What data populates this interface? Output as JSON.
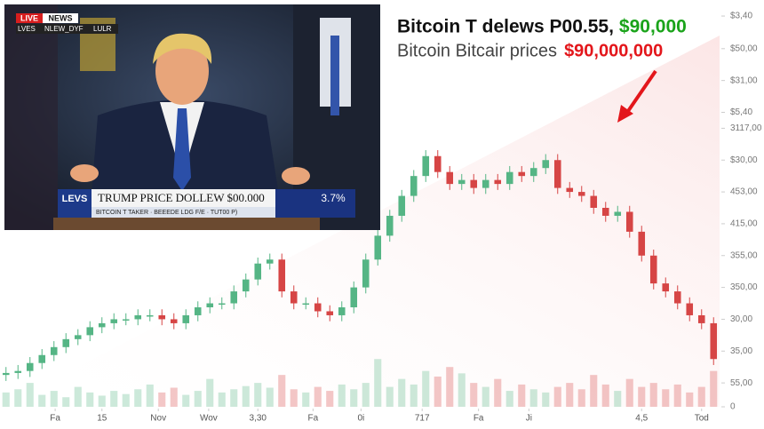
{
  "chart_data": {
    "type": "candlestick",
    "title": "Bitcoin T delews P00.55,",
    "title_highlight": "$90,000",
    "subtitle": "Bitcoin Bitcair prices",
    "subtitle_highlight": "$90,000,000",
    "colors": {
      "up": "#55b585",
      "down": "#d64545"
    },
    "xlim": [
      -0.5,
      59.5
    ],
    "xticks": [
      {
        "value": 4.1,
        "label": "Fa"
      },
      {
        "value": 8,
        "label": "15"
      },
      {
        "value": 12.7,
        "label": "Nov"
      },
      {
        "value": 16.9,
        "label": "Wov"
      },
      {
        "value": 21,
        "label": "3,30"
      },
      {
        "value": 25.6,
        "label": "Fa"
      },
      {
        "value": 29.6,
        "label": "0i"
      },
      {
        "value": 34.7,
        "label": "717"
      },
      {
        "value": 39.4,
        "label": "Fa"
      },
      {
        "value": 43.6,
        "label": "Ji"
      },
      {
        "value": 53,
        "label": "4,5"
      },
      {
        "value": 58,
        "label": "Tod"
      }
    ],
    "ylim": [
      0,
      100
    ],
    "yticks": [
      {
        "value": 98.2,
        "label": "$3,40"
      },
      {
        "value": 90,
        "label": "$50,00"
      },
      {
        "value": 82,
        "label": "$31,00"
      },
      {
        "value": 74,
        "label": "$5,40"
      },
      {
        "value": 70,
        "label": "3117,00"
      },
      {
        "value": 62,
        "label": "$30,00"
      },
      {
        "value": 54,
        "label": "453,00"
      },
      {
        "value": 46,
        "label": "415,00"
      },
      {
        "value": 38,
        "label": "355,00"
      },
      {
        "value": 30,
        "label": "350,00"
      },
      {
        "value": 22,
        "label": "30,00"
      },
      {
        "value": 14,
        "label": "35,00"
      },
      {
        "value": 6,
        "label": "55,00"
      },
      0
    ],
    "y2lim": [
      0,
      500
    ],
    "x": [
      0,
      1,
      2,
      3,
      4,
      5,
      6,
      7,
      8,
      9,
      10,
      11,
      12,
      13,
      14,
      15,
      16,
      17,
      18,
      19,
      20,
      21,
      22,
      23,
      24,
      25,
      26,
      27,
      28,
      29,
      30,
      31,
      32,
      33,
      34,
      35,
      36,
      37,
      38,
      39,
      40,
      41,
      42,
      43,
      44,
      45,
      46,
      47,
      48,
      49,
      50,
      51,
      52,
      53,
      54,
      55,
      56,
      57,
      58,
      59
    ],
    "open": [
      8,
      8.5,
      9,
      11,
      13,
      15,
      17,
      18,
      20,
      21,
      22,
      22,
      23,
      23,
      22,
      21,
      23,
      25,
      26,
      26,
      29,
      32,
      36,
      37,
      29,
      26,
      26,
      24,
      23,
      25,
      30,
      37,
      43,
      48,
      53,
      58,
      63,
      59,
      56,
      57,
      55,
      57,
      56,
      59,
      58,
      60,
      62,
      55,
      54,
      53,
      50,
      48,
      49,
      44,
      38,
      31,
      29,
      26,
      23,
      21
    ],
    "high": [
      10,
      10.5,
      12.5,
      14.5,
      16.5,
      18.5,
      19.5,
      21.5,
      22.5,
      23.5,
      23.5,
      24.5,
      24.5,
      24.5,
      23.5,
      24.5,
      26.5,
      27.5,
      27.5,
      30.5,
      33.5,
      37.5,
      38.5,
      38.5,
      30.5,
      27.5,
      27.5,
      25.5,
      26.5,
      31.5,
      38.5,
      44.5,
      49.5,
      54.5,
      59.5,
      64.5,
      64.5,
      60.5,
      58.5,
      58.5,
      58.5,
      58.5,
      60.5,
      60.5,
      61.5,
      63.5,
      63.5,
      56.5,
      55.5,
      54.5,
      51.5,
      50.5,
      50.5,
      45.5,
      39.5,
      32.5,
      30.5,
      27.5,
      24.5,
      22.5
    ],
    "low": [
      6.5,
      7,
      7.5,
      9.5,
      11.5,
      13.5,
      15.5,
      16.5,
      18.5,
      19.5,
      20.5,
      20.5,
      21.5,
      20.5,
      19.5,
      19.5,
      21.5,
      23.5,
      24.5,
      24.5,
      27.5,
      30.5,
      34.5,
      27.5,
      24.5,
      24.5,
      22.5,
      21.5,
      21.5,
      23.5,
      28.5,
      35.5,
      41.5,
      46.5,
      51.5,
      56.5,
      57.5,
      54.5,
      54.5,
      53.5,
      53.5,
      54.5,
      54.5,
      56.5,
      56.5,
      58.5,
      53.5,
      52.5,
      51.5,
      48.5,
      46.5,
      46.5,
      42.5,
      36.5,
      29.5,
      27.5,
      24.5,
      21.5,
      19.5,
      10.5
    ],
    "close": [
      8.5,
      9,
      11,
      13,
      15,
      17,
      18,
      20,
      21,
      22,
      22,
      23,
      23,
      22,
      21,
      23,
      25,
      26,
      26,
      29,
      32,
      36,
      37,
      29,
      26,
      26,
      24,
      23,
      25,
      30,
      37,
      43,
      48,
      53,
      58,
      63,
      59,
      56,
      57,
      55,
      57,
      56,
      59,
      58,
      60,
      62,
      55,
      54,
      53,
      50,
      48,
      49,
      44,
      38,
      31,
      29,
      26,
      23,
      21,
      12
    ],
    "volume": [
      18,
      22,
      30,
      15,
      20,
      12,
      25,
      18,
      14,
      20,
      16,
      22,
      28,
      18,
      24,
      15,
      20,
      35,
      18,
      22,
      26,
      30,
      24,
      40,
      22,
      18,
      25,
      20,
      28,
      22,
      30,
      60,
      25,
      35,
      28,
      45,
      38,
      50,
      42,
      30,
      25,
      35,
      20,
      28,
      22,
      18,
      25,
      30,
      22,
      40,
      28,
      20,
      35,
      25,
      30,
      22,
      28,
      18,
      25,
      45
    ]
  },
  "inset": {
    "badges": [
      "LIVE",
      "NEWS"
    ],
    "badges_row2": [
      "LVES",
      "NLEW_DYF",
      "LULR"
    ],
    "ticker_logo": "LEVS",
    "ticker_title": "TRUMP PRICE DOLLEW $00.000",
    "ticker_sub": "BITCOIN T TAKER · BEEEDE LDG F/E · TUT00 P)",
    "ticker_value": "3.7%"
  }
}
